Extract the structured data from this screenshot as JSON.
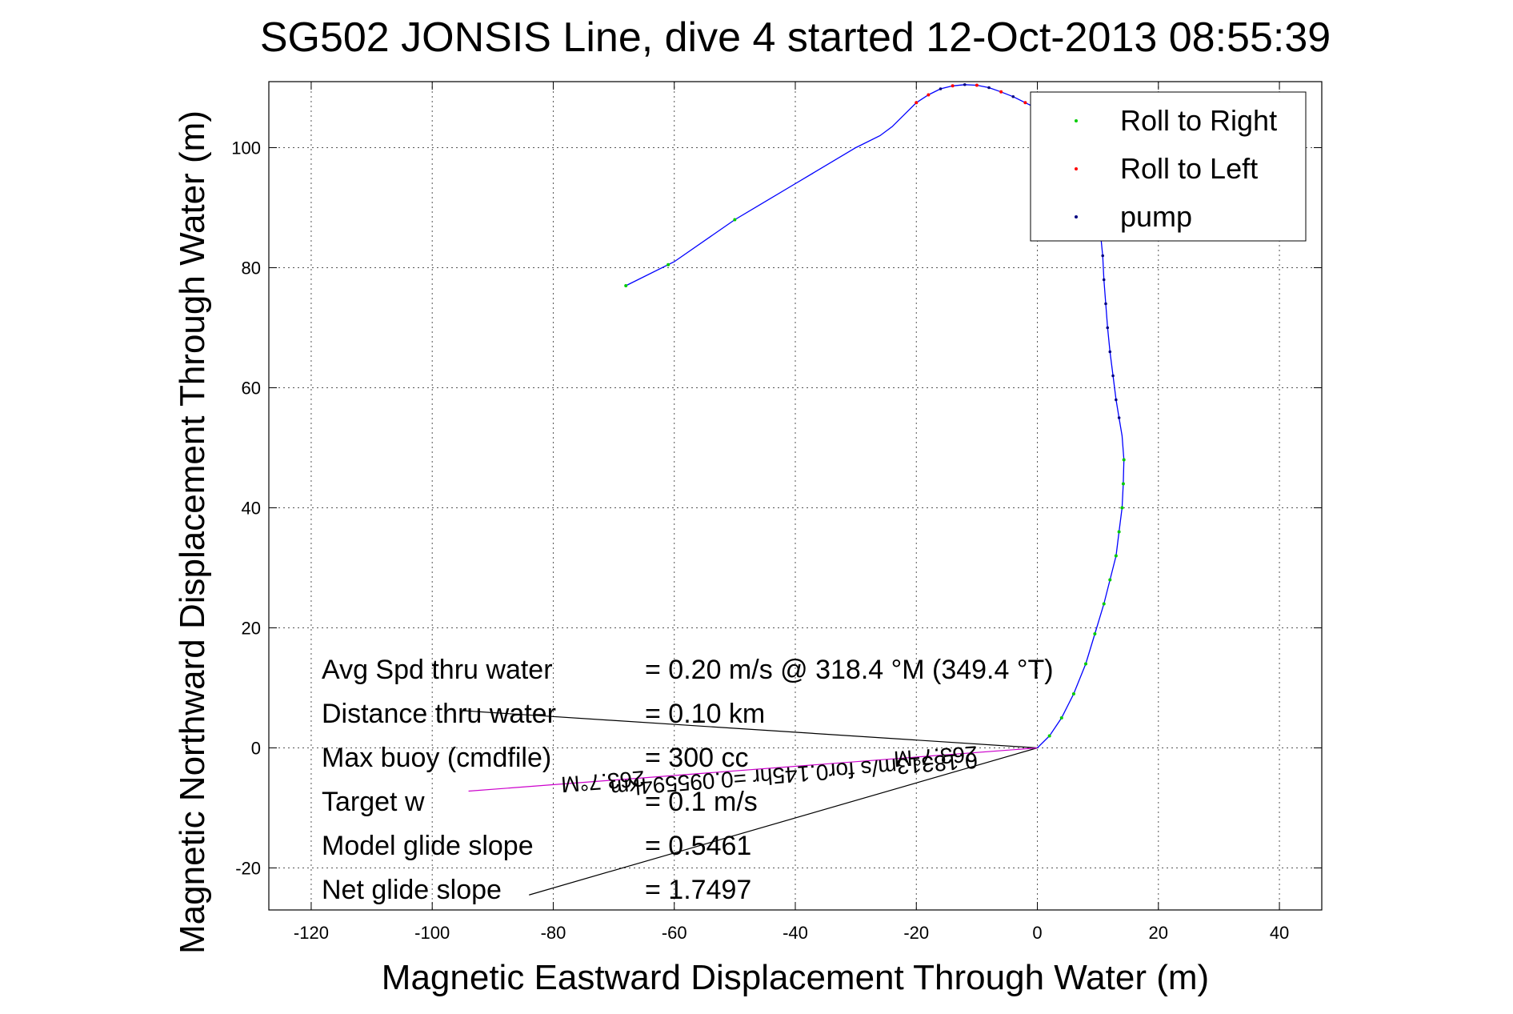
{
  "chart_data": {
    "type": "line",
    "title": "SG502 JONSIS Line, dive 4 started 12-Oct-2013 08:55:39",
    "xlabel": "Magnetic Eastward Displacement Through Water (m)",
    "ylabel": "Magnetic Northward Displacement Through Water (m)",
    "xlim": [
      -127,
      47
    ],
    "ylim": [
      -27,
      111
    ],
    "xticks": [
      -120,
      -100,
      -80,
      -60,
      -40,
      -20,
      0,
      20,
      40
    ],
    "yticks": [
      -20,
      0,
      20,
      40,
      60,
      80,
      100
    ],
    "grid": true,
    "legend_position": "top-right",
    "legend": [
      {
        "label": "Roll to Right",
        "color": "#00cc00"
      },
      {
        "label": "Roll to Left",
        "color": "#ff0000"
      },
      {
        "label": "pump",
        "color": "#000080"
      }
    ],
    "track": {
      "color": "#0000ff",
      "points": [
        [
          0,
          0
        ],
        [
          2,
          2
        ],
        [
          4,
          5
        ],
        [
          6,
          9
        ],
        [
          8,
          14
        ],
        [
          9.5,
          19
        ],
        [
          11,
          24
        ],
        [
          12,
          28
        ],
        [
          13,
          32
        ],
        [
          13.5,
          36
        ],
        [
          14,
          40
        ],
        [
          14.2,
          44
        ],
        [
          14.3,
          48
        ],
        [
          14,
          52
        ],
        [
          13.5,
          55
        ],
        [
          13,
          58
        ],
        [
          12.5,
          62
        ],
        [
          12,
          66
        ],
        [
          11.6,
          70
        ],
        [
          11.3,
          74
        ],
        [
          11,
          78
        ],
        [
          10.8,
          82
        ],
        [
          10.4,
          86
        ],
        [
          9.8,
          90
        ],
        [
          8.8,
          94
        ],
        [
          7.5,
          98
        ],
        [
          6,
          101
        ],
        [
          4,
          103.5
        ],
        [
          2,
          105
        ],
        [
          0,
          106.5
        ],
        [
          -2,
          107.5
        ],
        [
          -4,
          108.5
        ],
        [
          -6,
          109.3
        ],
        [
          -8,
          110
        ],
        [
          -10,
          110.4
        ],
        [
          -12,
          110.5
        ],
        [
          -14,
          110.3
        ],
        [
          -16,
          109.8
        ],
        [
          -18,
          108.8
        ],
        [
          -20,
          107.5
        ],
        [
          -22,
          105.5
        ],
        [
          -24,
          103.5
        ],
        [
          -26,
          102
        ],
        [
          -30,
          100
        ],
        [
          -40,
          94
        ],
        [
          -50,
          88
        ],
        [
          -60,
          81
        ],
        [
          -68,
          77
        ]
      ]
    },
    "roll_right_points": [
      [
        2,
        2
      ],
      [
        4,
        5
      ],
      [
        6,
        9
      ],
      [
        8,
        14
      ],
      [
        9.5,
        19
      ],
      [
        11,
        24
      ],
      [
        12,
        28
      ],
      [
        13,
        32
      ],
      [
        13.5,
        36
      ],
      [
        14,
        40
      ],
      [
        14.2,
        44
      ],
      [
        14.3,
        48
      ],
      [
        -50,
        88
      ],
      [
        -61,
        80.5
      ],
      [
        -68,
        77
      ]
    ],
    "roll_left_points": [
      [
        -2,
        107.5
      ],
      [
        -6,
        109.3
      ],
      [
        -10,
        110.4
      ],
      [
        -14,
        110.3
      ],
      [
        -18,
        108.8
      ],
      [
        -20,
        107.5
      ]
    ],
    "pump_points": [
      [
        13.5,
        55
      ],
      [
        13,
        58
      ],
      [
        12.5,
        62
      ],
      [
        12,
        66
      ],
      [
        11.6,
        70
      ],
      [
        11.3,
        74
      ],
      [
        11,
        78
      ],
      [
        10.8,
        82
      ],
      [
        10.4,
        86
      ],
      [
        0,
        106.5
      ],
      [
        -4,
        108.5
      ],
      [
        -8,
        110
      ],
      [
        -12,
        110.5
      ],
      [
        -16,
        109.8
      ]
    ],
    "current_lines": [
      {
        "from": [
          0,
          0
        ],
        "to": [
          -95,
          6.2
        ],
        "color": "#000000"
      },
      {
        "from": [
          0,
          0
        ],
        "to": [
          -84,
          -24.5
        ],
        "color": "#000000"
      },
      {
        "from": [
          0,
          0
        ],
        "to": [
          -94,
          -7.2
        ],
        "color": "#cc00cc"
      }
    ],
    "rotated_annotations": [
      {
        "text": "263.7°M",
        "x": -10,
        "y": 0.3,
        "angle_deg": 176.3,
        "size": 28
      },
      {
        "text": "0.18313m/s for0.145hr =0.095594km",
        "x": -10,
        "y": -0.8,
        "angle_deg": 175.6,
        "size": 28
      },
      {
        "text": "263.7°M",
        "x": -65,
        "y": -3.8,
        "angle_deg": 175.6,
        "size": 28
      }
    ],
    "stats": [
      {
        "label": "Avg Spd thru water",
        "value": "=  0.20 m/s @ 318.4 °M (349.4 °T)"
      },
      {
        "label": "Distance thru water",
        "value": "=  0.10 km"
      },
      {
        "label": "Max buoy (cmdfile)",
        "value": "= 300 cc"
      },
      {
        "label": "Target w",
        "value": "= 0.1 m/s"
      },
      {
        "label": "Model glide slope",
        "value": "= 0.5461"
      },
      {
        "label": "Net glide slope",
        "value": "= 1.7497"
      }
    ]
  }
}
